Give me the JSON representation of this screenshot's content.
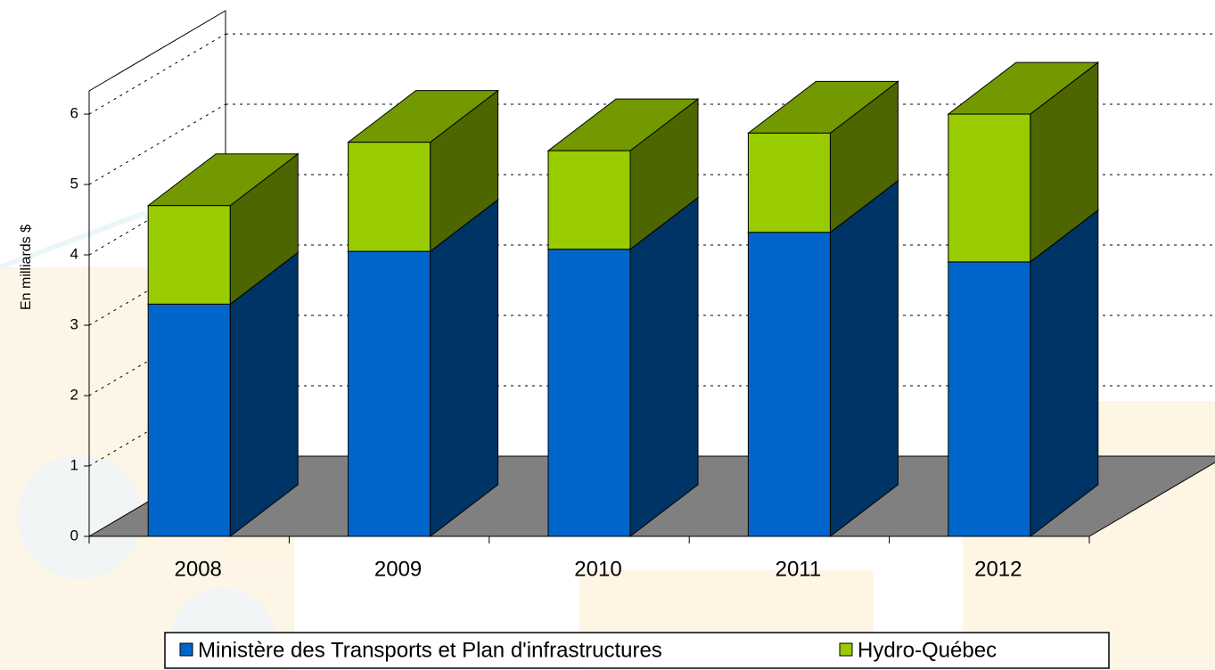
{
  "chart_data": {
    "type": "bar3d-stacked",
    "y_axis_label": "En milliards $",
    "categories": [
      "2008",
      "2009",
      "2010",
      "2011",
      "2012"
    ],
    "series": [
      {
        "name": "Ministère des Transports et Plan d'infrastructures",
        "color": "#0066cc",
        "values": [
          3.3,
          4.05,
          4.08,
          4.32,
          3.9
        ]
      },
      {
        "name": "Hydro-Québec",
        "color": "#99cc00",
        "values": [
          1.4,
          1.55,
          1.4,
          1.41,
          2.1
        ]
      }
    ],
    "ylim": [
      0,
      6.33
    ],
    "yticks": [
      0,
      1,
      2,
      3,
      4,
      5,
      6
    ],
    "grid": true
  }
}
